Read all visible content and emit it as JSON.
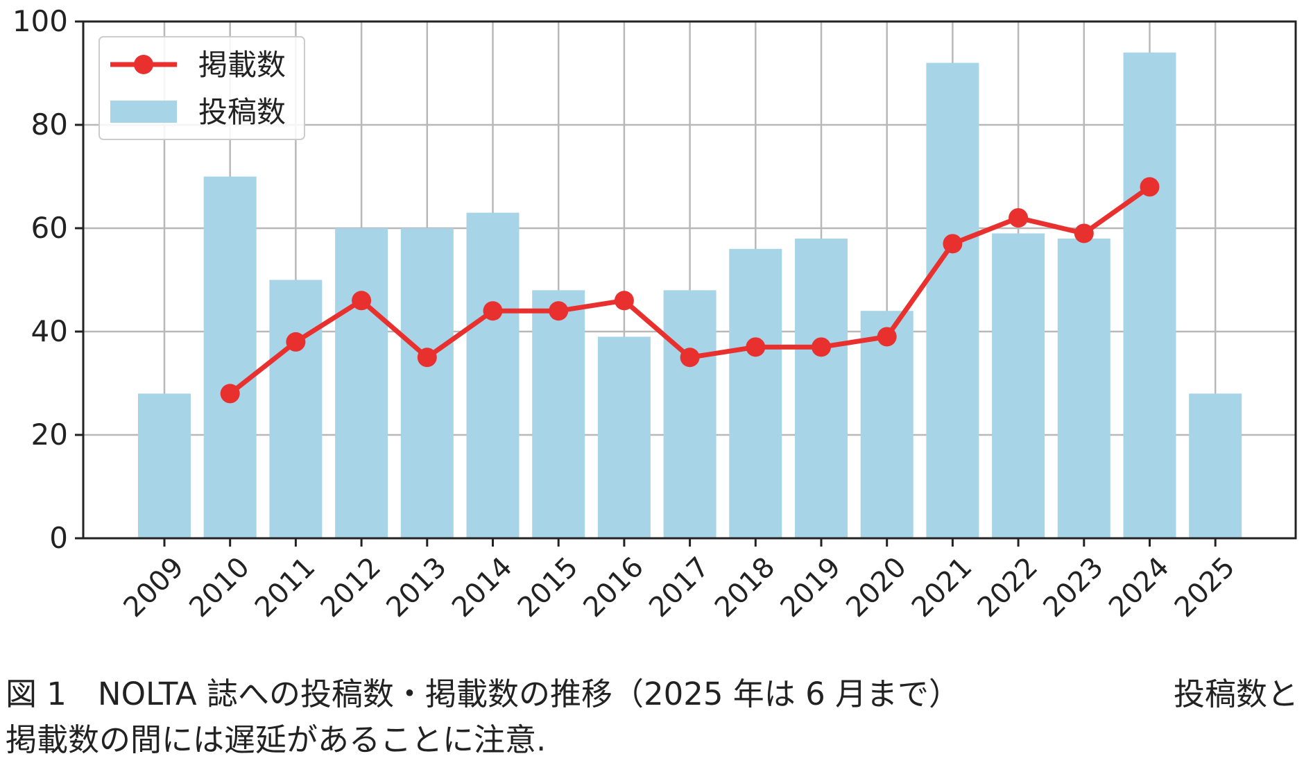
{
  "chart_data": {
    "type": "bar",
    "categories": [
      "2009",
      "2010",
      "2011",
      "2012",
      "2013",
      "2014",
      "2015",
      "2016",
      "2017",
      "2018",
      "2019",
      "2020",
      "2021",
      "2022",
      "2023",
      "2024",
      "2025"
    ],
    "series": [
      {
        "name": "投稿数",
        "kind": "bar",
        "color": "#a8d4e8",
        "values": [
          28,
          70,
          50,
          60,
          60,
          63,
          48,
          39,
          48,
          56,
          58,
          44,
          92,
          59,
          58,
          94,
          28
        ]
      },
      {
        "name": "掲載数",
        "kind": "line",
        "color": "#e8312f",
        "values": [
          null,
          28,
          38,
          46,
          35,
          44,
          44,
          46,
          35,
          37,
          37,
          39,
          57,
          62,
          59,
          68,
          null
        ]
      }
    ],
    "y_ticks": [
      "0",
      "20",
      "40",
      "60",
      "80",
      "100"
    ],
    "ylim": [
      0,
      100
    ],
    "grid": true,
    "legend_position": "top-left",
    "legend": [
      {
        "label": "掲載数",
        "series": "掲載数"
      },
      {
        "label": "投稿数",
        "series": "投稿数"
      }
    ]
  },
  "caption": {
    "line1_main": "図 1　NOLTA 誌への投稿数・掲載数の推移（2025 年は 6 月まで）",
    "line1_tail": "投稿数と",
    "line2": "掲載数の間には遅延があることに注意."
  }
}
